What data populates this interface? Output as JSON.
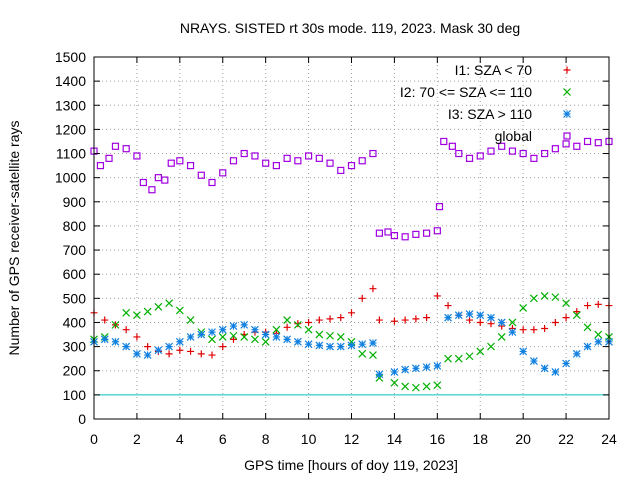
{
  "chart_data": {
    "type": "scatter",
    "title": "NRAYS. SISTED rt 30s mode. 119, 2023. Mask 30 deg",
    "xlabel": "GPS time [hours of doy 119, 2023]",
    "ylabel": "Number of GPS receiver-satellite rays",
    "xlim": [
      0,
      24
    ],
    "ylim": [
      0,
      1500
    ],
    "xticks": [
      "0",
      "2",
      "4",
      "6",
      "8",
      "10",
      "12",
      "14",
      "16",
      "18",
      "20",
      "22",
      "24"
    ],
    "yticks": [
      "0",
      "100",
      "200",
      "300",
      "400",
      "500",
      "600",
      "700",
      "800",
      "900",
      "1000",
      "1100",
      "1200",
      "1300",
      "1400",
      "1500"
    ],
    "grid": true,
    "legend_position": "top-right",
    "reference_line": {
      "y": 100,
      "color": "#00c8c8"
    },
    "series": [
      {
        "name": "I1: SZA < 70",
        "marker": "plus",
        "color": "#e00000",
        "points": [
          [
            0,
            440
          ],
          [
            0.5,
            410
          ],
          [
            1,
            390
          ],
          [
            1.5,
            370
          ],
          [
            2,
            340
          ],
          [
            2.5,
            300
          ],
          [
            3,
            280
          ],
          [
            3.5,
            270
          ],
          [
            4,
            285
          ],
          [
            4.5,
            280
          ],
          [
            5,
            270
          ],
          [
            5.5,
            265
          ],
          [
            6,
            300
          ],
          [
            6.5,
            330
          ],
          [
            7,
            350
          ],
          [
            7.5,
            360
          ],
          [
            8,
            360
          ],
          [
            8.5,
            355
          ],
          [
            9,
            380
          ],
          [
            9.5,
            395
          ],
          [
            10,
            400
          ],
          [
            10.5,
            410
          ],
          [
            11,
            415
          ],
          [
            11.5,
            420
          ],
          [
            12,
            440
          ],
          [
            12.5,
            500
          ],
          [
            13,
            540
          ],
          [
            13.3,
            410
          ],
          [
            14,
            405
          ],
          [
            14.5,
            410
          ],
          [
            15,
            415
          ],
          [
            15.5,
            420
          ],
          [
            16,
            510
          ],
          [
            16.5,
            470
          ],
          [
            17,
            430
          ],
          [
            17.5,
            410
          ],
          [
            18,
            400
          ],
          [
            18.5,
            395
          ],
          [
            19,
            385
          ],
          [
            19.5,
            375
          ],
          [
            20,
            370
          ],
          [
            20.5,
            370
          ],
          [
            21,
            375
          ],
          [
            21.5,
            400
          ],
          [
            22,
            420
          ],
          [
            22.5,
            445
          ],
          [
            23,
            470
          ],
          [
            23.5,
            475
          ],
          [
            24,
            470
          ]
        ]
      },
      {
        "name": "I2: 70 <= SZA <= 110",
        "marker": "cross",
        "color": "#00b000",
        "points": [
          [
            0,
            330
          ],
          [
            0.5,
            340
          ],
          [
            1,
            390
          ],
          [
            1.5,
            440
          ],
          [
            2,
            430
          ],
          [
            2.5,
            445
          ],
          [
            3,
            465
          ],
          [
            3.5,
            480
          ],
          [
            4,
            450
          ],
          [
            4.5,
            410
          ],
          [
            5,
            360
          ],
          [
            5.5,
            330
          ],
          [
            6,
            340
          ],
          [
            6.5,
            345
          ],
          [
            7,
            340
          ],
          [
            7.5,
            330
          ],
          [
            8,
            320
          ],
          [
            8.5,
            370
          ],
          [
            9,
            410
          ],
          [
            9.5,
            390
          ],
          [
            10,
            370
          ],
          [
            10.5,
            350
          ],
          [
            11,
            345
          ],
          [
            11.5,
            340
          ],
          [
            12,
            320
          ],
          [
            12.5,
            270
          ],
          [
            13,
            265
          ],
          [
            13.3,
            170
          ],
          [
            14,
            150
          ],
          [
            14.5,
            135
          ],
          [
            15,
            130
          ],
          [
            15.5,
            135
          ],
          [
            16,
            140
          ],
          [
            16.5,
            250
          ],
          [
            17,
            250
          ],
          [
            17.5,
            260
          ],
          [
            18,
            280
          ],
          [
            18.5,
            300
          ],
          [
            19,
            340
          ],
          [
            19.5,
            400
          ],
          [
            20,
            460
          ],
          [
            20.5,
            500
          ],
          [
            21,
            510
          ],
          [
            21.5,
            505
          ],
          [
            22,
            480
          ],
          [
            22.5,
            430
          ],
          [
            23,
            380
          ],
          [
            23.5,
            350
          ],
          [
            24,
            340
          ]
        ]
      },
      {
        "name": "I3: SZA > 110",
        "marker": "star",
        "color": "#1080e0",
        "points": [
          [
            0,
            320
          ],
          [
            0.5,
            330
          ],
          [
            1,
            320
          ],
          [
            1.5,
            300
          ],
          [
            2,
            270
          ],
          [
            2.5,
            265
          ],
          [
            3,
            285
          ],
          [
            3.5,
            300
          ],
          [
            4,
            320
          ],
          [
            4.5,
            340
          ],
          [
            5,
            350
          ],
          [
            5.5,
            360
          ],
          [
            6,
            370
          ],
          [
            6.5,
            385
          ],
          [
            7,
            390
          ],
          [
            7.5,
            370
          ],
          [
            8,
            350
          ],
          [
            8.5,
            340
          ],
          [
            9,
            330
          ],
          [
            9.5,
            320
          ],
          [
            10,
            310
          ],
          [
            10.5,
            305
          ],
          [
            11,
            300
          ],
          [
            11.5,
            300
          ],
          [
            12,
            305
          ],
          [
            12.5,
            310
          ],
          [
            13,
            315
          ],
          [
            13.3,
            185
          ],
          [
            14,
            195
          ],
          [
            14.5,
            205
          ],
          [
            15,
            210
          ],
          [
            15.5,
            215
          ],
          [
            16,
            220
          ],
          [
            16.5,
            420
          ],
          [
            17,
            430
          ],
          [
            17.5,
            435
          ],
          [
            18,
            430
          ],
          [
            18.5,
            420
          ],
          [
            19,
            400
          ],
          [
            19.5,
            360
          ],
          [
            20,
            280
          ],
          [
            20.5,
            240
          ],
          [
            21,
            210
          ],
          [
            21.5,
            195
          ],
          [
            22,
            230
          ],
          [
            22.5,
            270
          ],
          [
            23,
            300
          ],
          [
            23.5,
            320
          ],
          [
            24,
            320
          ]
        ]
      },
      {
        "name": "global",
        "marker": "square",
        "color": "#a000e0",
        "points": [
          [
            0,
            1110
          ],
          [
            0.3,
            1050
          ],
          [
            0.7,
            1080
          ],
          [
            1,
            1130
          ],
          [
            1.5,
            1120
          ],
          [
            2,
            1090
          ],
          [
            2.3,
            980
          ],
          [
            2.7,
            950
          ],
          [
            3,
            1000
          ],
          [
            3.3,
            990
          ],
          [
            3.6,
            1060
          ],
          [
            4,
            1070
          ],
          [
            4.5,
            1050
          ],
          [
            5,
            1010
          ],
          [
            5.5,
            980
          ],
          [
            6,
            1020
          ],
          [
            6.5,
            1070
          ],
          [
            7,
            1100
          ],
          [
            7.5,
            1090
          ],
          [
            8,
            1060
          ],
          [
            8.5,
            1050
          ],
          [
            9,
            1080
          ],
          [
            9.5,
            1070
          ],
          [
            10,
            1090
          ],
          [
            10.5,
            1080
          ],
          [
            11,
            1060
          ],
          [
            11.5,
            1030
          ],
          [
            12,
            1050
          ],
          [
            12.5,
            1070
          ],
          [
            13,
            1100
          ],
          [
            13.3,
            770
          ],
          [
            13.7,
            775
          ],
          [
            14,
            760
          ],
          [
            14.5,
            755
          ],
          [
            15,
            765
          ],
          [
            15.5,
            770
          ],
          [
            16,
            780
          ],
          [
            16.1,
            880
          ],
          [
            16.3,
            1150
          ],
          [
            16.7,
            1130
          ],
          [
            17,
            1100
          ],
          [
            17.5,
            1080
          ],
          [
            18,
            1090
          ],
          [
            18.5,
            1110
          ],
          [
            19,
            1130
          ],
          [
            19.5,
            1110
          ],
          [
            20,
            1100
          ],
          [
            20.5,
            1080
          ],
          [
            21,
            1100
          ],
          [
            21.5,
            1120
          ],
          [
            22,
            1140
          ],
          [
            22.5,
            1130
          ],
          [
            23,
            1150
          ],
          [
            23.5,
            1145
          ],
          [
            24,
            1150
          ]
        ]
      }
    ]
  }
}
